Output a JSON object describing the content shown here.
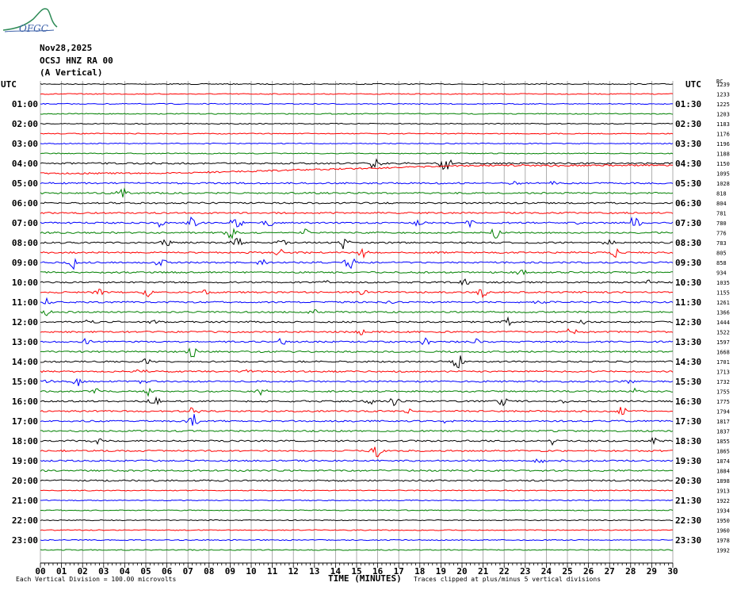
{
  "header": {
    "logo_text": "OFGC",
    "date": "Nov28,2025",
    "station": "OCSJ HNZ RA 00",
    "component": "(A Vertical)"
  },
  "axes": {
    "left_title": "UTC",
    "right_title": "UTC",
    "right_scale_title": "RC"
  },
  "footer": {
    "scale_note": "Each Vertical Division =  100.00 microvolts",
    "xlabel": "TIME (MINUTES)",
    "clip_note": "Traces clipped at plus/minus 5 vertical divisions"
  },
  "chart_data": {
    "type": "line",
    "title": "",
    "xlabel": "TIME (MINUTES)",
    "ylabel": "UTC",
    "xlim": [
      0,
      30
    ],
    "xticks": [
      "00",
      "01",
      "02",
      "03",
      "04",
      "05",
      "06",
      "07",
      "08",
      "09",
      "10",
      "11",
      "12",
      "13",
      "14",
      "15",
      "16",
      "17",
      "18",
      "19",
      "20",
      "21",
      "22",
      "23",
      "24",
      "25",
      "26",
      "27",
      "28",
      "29",
      "30"
    ],
    "left_hour_labels": [
      "01:00",
      "02:00",
      "03:00",
      "04:00",
      "05:00",
      "06:00",
      "07:00",
      "08:00",
      "09:00",
      "10:00",
      "11:00",
      "12:00",
      "13:00",
      "14:00",
      "15:00",
      "16:00",
      "17:00",
      "18:00",
      "19:00",
      "20:00",
      "21:00",
      "22:00",
      "23:00"
    ],
    "right_hour_labels": [
      "01:30",
      "02:30",
      "03:30",
      "04:30",
      "05:30",
      "06:30",
      "07:30",
      "08:30",
      "09:30",
      "10:30",
      "11:30",
      "12:30",
      "13:30",
      "14:30",
      "15:30",
      "16:30",
      "17:30",
      "18:30",
      "19:30",
      "20:30",
      "21:30",
      "22:30",
      "23:30"
    ],
    "trace_count": 48,
    "trace_color_cycle": [
      "#000000",
      "#ff0000",
      "#0000ff",
      "#008000"
    ],
    "rc_values": [
      "1239",
      "1233",
      "1225",
      "1203",
      "1183",
      "1176",
      "1196",
      "1188",
      "1150",
      "1095",
      "1028",
      "818",
      "804",
      "781",
      "780",
      "776",
      "783",
      "805",
      "858",
      "934",
      "1035",
      "1155",
      "1261",
      "1366",
      "1444",
      "1522",
      "1597",
      "1668",
      "1701",
      "1713",
      "1732",
      "1755",
      "1775",
      "1794",
      "1817",
      "1837",
      "1855",
      "1865",
      "1874",
      "1884",
      "1898",
      "1913",
      "1922",
      "1934",
      "1950",
      "1960",
      "1978",
      "1992"
    ],
    "grid": true
  }
}
